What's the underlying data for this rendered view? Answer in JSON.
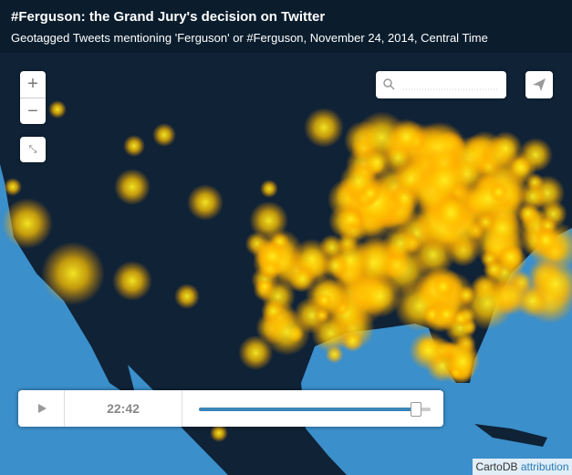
{
  "header": {
    "title": "#Ferguson: the Grand Jury's decision on Twitter",
    "subtitle": "Geotagged Tweets mentioning 'Ferguson' or #Ferguson, November 24, 2014, Central Time"
  },
  "controls": {
    "zoom_in": "+",
    "zoom_out": "−"
  },
  "timeline": {
    "time": "22:42"
  },
  "attribution": {
    "brand": "CartoDB",
    "link": "attribution"
  }
}
